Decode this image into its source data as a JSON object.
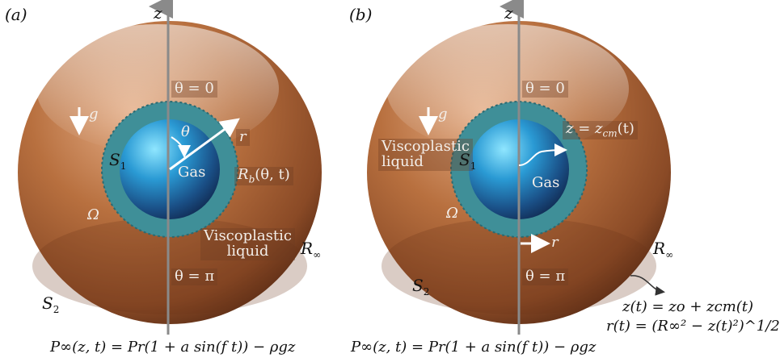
{
  "panel_a": {
    "tag": "(a)",
    "axis_label": "z",
    "theta_top": "θ = 0",
    "theta_bottom": "θ = π",
    "gravity": "g",
    "theta": "θ",
    "r": "r",
    "surface_inner": "S",
    "surface_inner_sub": "1",
    "surface_outer": "S",
    "surface_outer_sub": "2",
    "gas": "Gas",
    "bubble_radius": "R",
    "bubble_radius_sub": "b",
    "bubble_radius_args": "(θ, t)",
    "omega": "Ω",
    "liquid_line1": "Viscoplastic",
    "liquid_line2": "liquid",
    "r_inf": "R",
    "r_inf_sub": "∞",
    "equation": "P∞(z, t) = Pr(1 + a sin(f t)) − ρgz"
  },
  "panel_b": {
    "tag": "(b)",
    "axis_label": "z",
    "theta_top": "θ = 0",
    "theta_bottom": "θ = π",
    "gravity": "g",
    "liquid_line1": "Viscoplastic",
    "liquid_line2": "liquid",
    "surface_inner": "S",
    "surface_inner_sub": "1",
    "surface_outer": "S",
    "surface_outer_sub": "2",
    "zcm_lhs": "z = z",
    "zcm_sub": "cm",
    "zcm_args": "(t)",
    "gas": "Gas",
    "omega": "Ω",
    "r": "r",
    "r_inf": "R",
    "r_inf_sub": "∞",
    "z_of_t": "z(t) = zo + zcm(t)",
    "r_of_t": "r(t) = (R∞² − z(t)²)^1/2",
    "equation": "P∞(z, t) = Pr(1 + a sin(f t)) − ρgz"
  },
  "colors": {
    "outer_sphere": "#a65f37",
    "ring": "#3f8f98",
    "bubble": "#2a8fc7",
    "axis": "#8a8a8a"
  }
}
